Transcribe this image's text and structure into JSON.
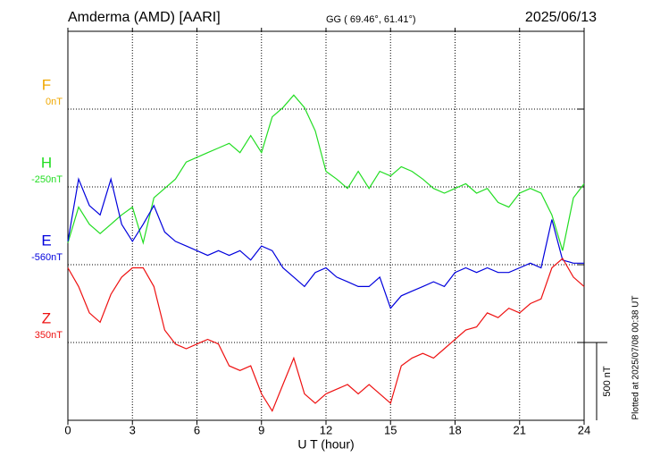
{
  "chart_data": {
    "type": "line",
    "title": "Amderma (AMD)  [AARI]",
    "subtitle": "GG ( 69.46°,  61.41°)",
    "date": "2025/06/13",
    "x_label": "U T (hour)",
    "note": "Plotted at 2025/07/08 00:38 UT",
    "xlim": [
      0,
      24
    ],
    "xticks": [
      0,
      3,
      6,
      9,
      12,
      15,
      18,
      21,
      24
    ],
    "grid": true,
    "scale_bar": {
      "value": 500,
      "label": "500 nT"
    },
    "x": [
      0,
      0.5,
      1,
      1.5,
      2,
      2.5,
      3,
      3.5,
      4,
      4.5,
      5,
      5.5,
      6,
      6.5,
      7,
      7.5,
      8,
      8.5,
      9,
      9.5,
      10,
      10.5,
      11,
      11.5,
      12,
      12.5,
      13,
      13.5,
      14,
      14.5,
      15,
      15.5,
      16,
      16.5,
      17,
      17.5,
      18,
      18.5,
      19,
      19.5,
      20,
      20.5,
      21,
      21.5,
      22,
      22.5,
      23,
      23.5,
      24
    ],
    "series": [
      {
        "name": "F",
        "color": "#f0a800",
        "offset": {
          "value": 0,
          "label": "0nT"
        }
      },
      {
        "name": "H",
        "color": "#22dd22",
        "offset": {
          "value": -250,
          "label": "-250nT"
        },
        "values": [
          -610,
          -380,
          -490,
          -550,
          -490,
          -430,
          -380,
          -610,
          -320,
          -260,
          -200,
          -90,
          -60,
          -30,
          0,
          30,
          -30,
          80,
          -30,
          200,
          260,
          340,
          260,
          110,
          -150,
          -200,
          -260,
          -150,
          -260,
          -150,
          -180,
          -120,
          -150,
          -200,
          -260,
          -290,
          -260,
          -230,
          -290,
          -260,
          -350,
          -380,
          -290,
          -260,
          -290,
          -430,
          -660,
          -320,
          -230
        ]
      },
      {
        "name": "E",
        "color": "#0000dd",
        "offset": {
          "value": -560,
          "label": "-560nT"
        },
        "values": [
          -410,
          -10,
          -180,
          -240,
          -10,
          -300,
          -410,
          -300,
          -180,
          -350,
          -410,
          -440,
          -470,
          -500,
          -470,
          -500,
          -470,
          -530,
          -440,
          -470,
          -580,
          -640,
          -700,
          -610,
          -580,
          -640,
          -670,
          -700,
          -700,
          -640,
          -840,
          -760,
          -730,
          -700,
          -670,
          -700,
          -610,
          -580,
          -610,
          -580,
          -610,
          -610,
          -580,
          -550,
          -580,
          -270,
          -530,
          -550,
          -550
        ]
      },
      {
        "name": "Z",
        "color": "#ee1111",
        "offset": {
          "value": 350,
          "label": "350nT"
        },
        "values": [
          830,
          710,
          540,
          480,
          660,
          770,
          830,
          830,
          710,
          430,
          340,
          310,
          340,
          370,
          340,
          200,
          170,
          200,
          20,
          -90,
          80,
          250,
          20,
          -40,
          20,
          50,
          80,
          20,
          80,
          20,
          -40,
          200,
          250,
          280,
          250,
          310,
          370,
          430,
          450,
          540,
          510,
          570,
          540,
          600,
          630,
          830,
          890,
          770,
          710
        ]
      }
    ]
  }
}
